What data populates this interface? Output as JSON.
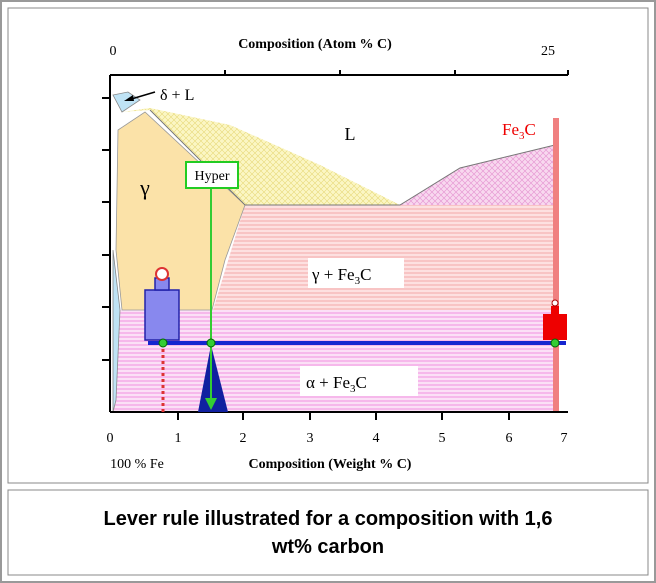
{
  "diagram": {
    "top_axis": {
      "title": "Composition  (Atom % C)",
      "ticks": [
        "0",
        "25"
      ]
    },
    "bottom_axis": {
      "title": "Composition (Weight % C)",
      "ticks": [
        "0",
        "1",
        "2",
        "3",
        "4",
        "5",
        "6",
        "7"
      ],
      "origin_note": "100 % Fe"
    },
    "regions": {
      "delta_liquid": "δ + L",
      "liquid": "L",
      "cementite": {
        "main": "Fe",
        "sub": "3",
        "tail": "C"
      },
      "gamma": "γ",
      "gamma_cementite": {
        "main": "γ + Fe",
        "sub": "3",
        "tail": "C"
      },
      "alpha_cementite": {
        "main": "α + Fe",
        "sub": "3",
        "tail": "C"
      }
    },
    "marker": "Hyper",
    "caption": [
      "Lever rule illustrated for a composition with 1,6",
      "wt% carbon"
    ]
  }
}
